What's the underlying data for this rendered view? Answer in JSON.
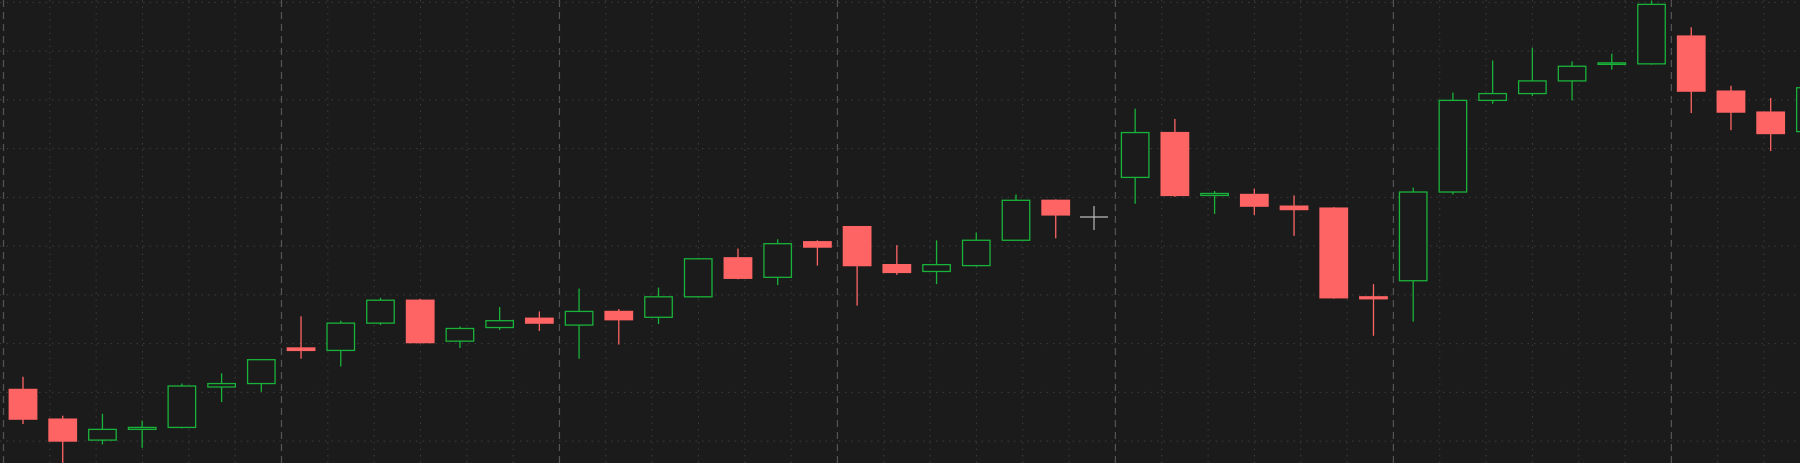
{
  "chart_data": {
    "type": "candlestick",
    "open": [
      1.06,
      0.45,
      0.02,
      0.24,
      0.28,
      1.11,
      1.18,
      1.91,
      1.86,
      2.42,
      2.89,
      2.05,
      2.33,
      2.52,
      2.38,
      2.66,
      2.54,
      2.96,
      3.76,
      3.36,
      4.09,
      4.4,
      3.62,
      3.48,
      3.6,
      4.12,
      4.94,
      null,
      5.41,
      6.33,
      5.04,
      5.06,
      4.82,
      4.78,
      2.96,
      3.29,
      5.11,
      6.99,
      7.13,
      7.39,
      7.74,
      7.74,
      8.31,
      7.18,
      6.75,
      6.35
    ],
    "high": [
      1.32,
      0.52,
      0.56,
      0.42,
      1.18,
      1.39,
      1.67,
      2.56,
      2.47,
      2.94,
      2.92,
      2.35,
      2.75,
      2.66,
      3.13,
      2.71,
      3.15,
      3.76,
      3.95,
      4.14,
      4.12,
      4.4,
      4.02,
      4.12,
      4.28,
      5.06,
      4.96,
      null,
      6.82,
      6.61,
      5.13,
      5.18,
      5.04,
      4.8,
      3.22,
      5.2,
      7.15,
      7.81,
      8.07,
      7.79,
      7.95,
      9.04,
      8.49,
      7.29,
      7.04,
      7.4
    ],
    "low": [
      0.35,
      -0.45,
      -0.07,
      -0.14,
      0.26,
      0.8,
      1.01,
      1.69,
      1.53,
      2.38,
      2.0,
      1.91,
      2.28,
      2.26,
      1.69,
      1.98,
      2.4,
      2.94,
      3.32,
      3.2,
      3.6,
      2.78,
      3.41,
      3.22,
      3.58,
      4.12,
      4.16,
      null,
      4.87,
      5.01,
      4.66,
      4.64,
      4.21,
      2.92,
      2.16,
      2.45,
      5.06,
      6.92,
      7.08,
      6.99,
      7.62,
      7.72,
      6.73,
      6.38,
      5.95,
      6.3
    ],
    "close": [
      0.45,
      0.0,
      0.24,
      0.28,
      1.13,
      1.18,
      1.67,
      1.86,
      2.42,
      2.89,
      2.02,
      2.31,
      2.47,
      2.42,
      2.66,
      2.49,
      2.96,
      3.74,
      3.34,
      4.05,
      3.98,
      3.6,
      3.46,
      3.62,
      4.12,
      4.94,
      4.64,
      null,
      6.33,
      5.04,
      5.08,
      4.82,
      4.75,
      2.94,
      2.92,
      5.11,
      6.99,
      7.13,
      7.39,
      7.69,
      7.76,
      8.96,
      7.18,
      6.75,
      6.31,
      7.25
    ],
    "up_color": "#19b23a",
    "down_color": "#ff6464",
    "ylim": [
      -0.45,
      9.05
    ],
    "yticks": [
      0,
      1,
      2,
      3,
      4,
      5,
      6,
      7,
      8,
      9
    ],
    "grid": true
  }
}
